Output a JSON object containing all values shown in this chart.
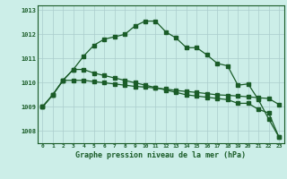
{
  "title": "Graphe pression niveau de la mer (hPa)",
  "background_color": "#cceee8",
  "grid_color": "#aacccc",
  "line_color": "#1a5c28",
  "x_labels": [
    "0",
    "1",
    "2",
    "3",
    "4",
    "5",
    "6",
    "7",
    "8",
    "9",
    "10",
    "11",
    "12",
    "13",
    "14",
    "15",
    "16",
    "17",
    "18",
    "19",
    "20",
    "21",
    "22",
    "23"
  ],
  "ylim": [
    1007.5,
    1013.2
  ],
  "yticks": [
    1008,
    1009,
    1010,
    1011,
    1012,
    1013
  ],
  "series1": [
    1009.0,
    1009.5,
    1010.1,
    1010.55,
    1011.1,
    1011.55,
    1011.8,
    1011.9,
    1012.0,
    1012.35,
    1012.55,
    1012.55,
    1012.1,
    1011.85,
    1011.45,
    1011.45,
    1011.15,
    1010.8,
    1010.7,
    1009.9,
    1009.95,
    1009.3,
    1008.5,
    1007.75
  ],
  "series2": [
    1009.0,
    1009.5,
    1010.1,
    1010.55,
    1010.55,
    1010.4,
    1010.3,
    1010.2,
    1010.1,
    1010.0,
    1009.9,
    1009.8,
    1009.7,
    1009.6,
    1009.5,
    1009.45,
    1009.4,
    1009.35,
    1009.3,
    1009.15,
    1009.15,
    1008.9,
    1008.75,
    1007.75
  ],
  "series3": [
    1009.0,
    1009.5,
    1010.1,
    1010.1,
    1010.1,
    1010.05,
    1010.0,
    1009.95,
    1009.9,
    1009.85,
    1009.82,
    1009.78,
    1009.74,
    1009.68,
    1009.64,
    1009.6,
    1009.55,
    1009.5,
    1009.48,
    1009.45,
    1009.42,
    1009.38,
    1009.35,
    1009.1
  ]
}
